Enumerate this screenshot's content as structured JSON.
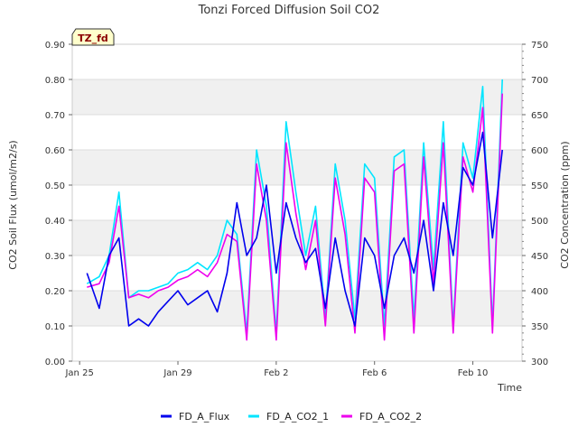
{
  "chart_data": {
    "type": "line",
    "title": "Tonzi Forced Diffusion Soil CO2",
    "site_badge": "TZ_fd",
    "xlabel": "Time",
    "ylabel_left": "CO2 Soil Flux (umol/m2/s)",
    "ylabel_right": "CO2 Concentration (ppm)",
    "x_ticks": [
      "Jan 25",
      "Jan 29",
      "Feb 2",
      "Feb 6",
      "Feb 10"
    ],
    "x_tick_days": [
      0,
      4,
      8,
      12,
      16
    ],
    "x_range_days": [
      -0.3,
      18.0
    ],
    "ylim_left": [
      0.0,
      0.9
    ],
    "yticks_left": [
      "0.00",
      "0.10",
      "0.20",
      "0.30",
      "0.40",
      "0.50",
      "0.60",
      "0.70",
      "0.80",
      "0.90"
    ],
    "ylim_right": [
      300,
      750
    ],
    "yticks_right": [
      "300",
      "350",
      "400",
      "450",
      "500",
      "550",
      "600",
      "650",
      "700",
      "750"
    ],
    "shaded_bands_left": [
      [
        0.1,
        0.2
      ],
      [
        0.3,
        0.4
      ],
      [
        0.5,
        0.6
      ],
      [
        0.7,
        0.8
      ]
    ],
    "grid": true,
    "legend_position": "bottom-center",
    "x_note": "x values are days since Jan 25",
    "series": [
      {
        "name": "FD_A_Flux",
        "axis": "left",
        "color": "#0000ee",
        "x": [
          0.3,
          0.8,
          1.2,
          1.6,
          2.0,
          2.4,
          2.8,
          3.2,
          3.6,
          4.0,
          4.4,
          4.8,
          5.2,
          5.6,
          6.0,
          6.4,
          6.8,
          7.2,
          7.6,
          8.0,
          8.4,
          8.8,
          9.2,
          9.6,
          10.0,
          10.4,
          10.8,
          11.2,
          11.6,
          12.0,
          12.4,
          12.8,
          13.2,
          13.6,
          14.0,
          14.4,
          14.8,
          15.2,
          15.6,
          16.0,
          16.4,
          16.8,
          17.2
        ],
        "y": [
          0.25,
          0.15,
          0.3,
          0.35,
          0.1,
          0.12,
          0.1,
          0.14,
          0.17,
          0.2,
          0.16,
          0.18,
          0.2,
          0.14,
          0.25,
          0.45,
          0.3,
          0.35,
          0.5,
          0.25,
          0.45,
          0.35,
          0.28,
          0.32,
          0.15,
          0.35,
          0.2,
          0.1,
          0.35,
          0.3,
          0.15,
          0.3,
          0.35,
          0.25,
          0.4,
          0.2,
          0.45,
          0.3,
          0.55,
          0.5,
          0.65,
          0.35,
          0.6
        ]
      },
      {
        "name": "FD_A_CO2_1",
        "axis": "right",
        "color": "#00e5ff",
        "x": [
          0.3,
          0.8,
          1.2,
          1.6,
          2.0,
          2.4,
          2.8,
          3.2,
          3.6,
          4.0,
          4.4,
          4.8,
          5.2,
          5.6,
          6.0,
          6.4,
          6.8,
          7.2,
          7.6,
          8.0,
          8.4,
          8.8,
          9.2,
          9.6,
          10.0,
          10.4,
          10.8,
          11.2,
          11.6,
          12.0,
          12.4,
          12.8,
          13.2,
          13.6,
          14.0,
          14.4,
          14.8,
          15.2,
          15.6,
          16.0,
          16.4,
          16.8,
          17.2
        ],
        "y": [
          410,
          420,
          450,
          540,
          390,
          400,
          400,
          405,
          410,
          425,
          430,
          440,
          430,
          450,
          500,
          480,
          340,
          600,
          520,
          340,
          640,
          540,
          450,
          520,
          360,
          580,
          500,
          360,
          580,
          560,
          350,
          590,
          600,
          360,
          610,
          430,
          640,
          350,
          610,
          560,
          690,
          350,
          700
        ]
      },
      {
        "name": "FD_A_CO2_2",
        "axis": "right",
        "color": "#ee00ee",
        "x": [
          0.3,
          0.8,
          1.2,
          1.6,
          2.0,
          2.4,
          2.8,
          3.2,
          3.6,
          4.0,
          4.4,
          4.8,
          5.2,
          5.6,
          6.0,
          6.4,
          6.8,
          7.2,
          7.6,
          8.0,
          8.4,
          8.8,
          9.2,
          9.6,
          10.0,
          10.4,
          10.8,
          11.2,
          11.6,
          12.0,
          12.4,
          12.8,
          13.2,
          13.6,
          14.0,
          14.4,
          14.8,
          15.2,
          15.6,
          16.0,
          16.4,
          16.8,
          17.2
        ],
        "y": [
          405,
          410,
          440,
          520,
          390,
          395,
          390,
          400,
          405,
          415,
          420,
          430,
          420,
          440,
          480,
          470,
          330,
          580,
          500,
          330,
          610,
          510,
          430,
          500,
          350,
          560,
          480,
          340,
          560,
          540,
          330,
          570,
          580,
          340,
          590,
          410,
          610,
          340,
          590,
          540,
          660,
          340,
          680
        ]
      }
    ]
  }
}
